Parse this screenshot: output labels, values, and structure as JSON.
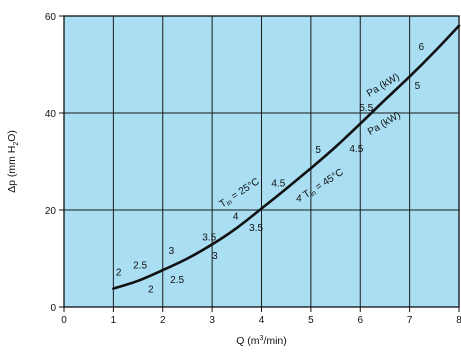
{
  "chart_data": {
    "type": "line",
    "xlabel_parts": [
      "Q (m",
      "3",
      "/min)"
    ],
    "ylabel_parts": [
      "Δp (mm H",
      "2",
      "O)"
    ],
    "xlim": [
      0,
      8
    ],
    "ylim": [
      0,
      60
    ],
    "x_ticks": [
      "0",
      "1",
      "2",
      "3",
      "4",
      "5",
      "6",
      "7",
      "8"
    ],
    "y_ticks": [
      "0",
      "20",
      "40",
      "60"
    ],
    "x_tick_values": [
      0,
      1,
      2,
      3,
      4,
      5,
      6,
      7,
      8
    ],
    "y_tick_values": [
      0,
      20,
      40,
      60
    ],
    "grid": true,
    "colors": {
      "plot_bg": "#a9def3",
      "grid": "#1a1a1a",
      "curve": "#111111"
    },
    "series": [
      {
        "x": [
          1.0,
          1.5,
          2.0,
          2.5,
          3.0,
          3.5,
          4.0,
          4.5,
          5.0,
          5.5,
          6.0,
          6.5,
          7.0,
          7.5,
          8.0
        ],
        "y": [
          3.8,
          5.4,
          7.6,
          10.0,
          12.9,
          16.3,
          20.3,
          24.4,
          28.6,
          33.0,
          37.8,
          42.7,
          47.5,
          52.6,
          58.0
        ]
      }
    ],
    "annotations": {
      "upper_label": {
        "t_main": "T",
        "t_sub": "in",
        "rest": " = 25°C",
        "x": 3.2,
        "y": 20.5,
        "angle": -33
      },
      "lower_label": {
        "t_main": "T",
        "t_sub": "in",
        "rest": " = 45°C",
        "x": 4.9,
        "y": 22.4,
        "angle": -33
      },
      "upper_power_unit": {
        "text": "Pa (kW)",
        "x": 6.18,
        "y": 43.3,
        "angle": -31
      },
      "lower_power_unit": {
        "text": "Pa (kW)",
        "x": 6.2,
        "y": 35.4,
        "angle": -31
      },
      "upper_values": [
        {
          "text": "2",
          "x": 1.05,
          "y": 6.5
        },
        {
          "text": "2.5",
          "x": 1.4,
          "y": 7.9
        },
        {
          "text": "3",
          "x": 2.12,
          "y": 10.9
        },
        {
          "text": "3.5",
          "x": 2.8,
          "y": 13.7
        },
        {
          "text": "4",
          "x": 3.42,
          "y": 18.0
        },
        {
          "text": "4.5",
          "x": 4.2,
          "y": 24.8
        },
        {
          "text": "5",
          "x": 5.09,
          "y": 31.8
        },
        {
          "text": "5.5",
          "x": 5.98,
          "y": 40.4
        },
        {
          "text": "6",
          "x": 7.18,
          "y": 53.0
        }
      ],
      "lower_values": [
        {
          "text": "2",
          "x": 1.7,
          "y": 3.0
        },
        {
          "text": "2.5",
          "x": 2.15,
          "y": 5.0
        },
        {
          "text": "3",
          "x": 3.0,
          "y": 9.9
        },
        {
          "text": "3.5",
          "x": 3.75,
          "y": 15.7
        },
        {
          "text": "4",
          "x": 4.7,
          "y": 21.8
        },
        {
          "text": "4.5",
          "x": 5.78,
          "y": 32.0
        },
        {
          "text": "5",
          "x": 7.1,
          "y": 45.0
        }
      ]
    }
  }
}
